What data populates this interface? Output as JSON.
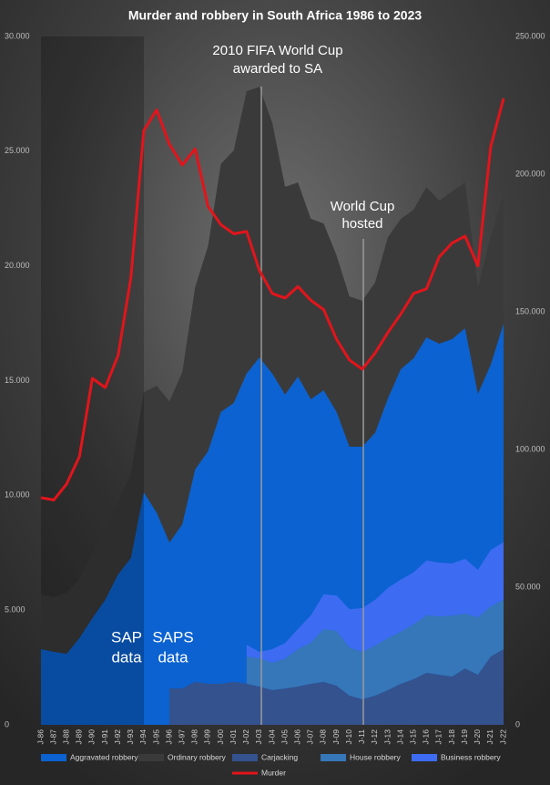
{
  "chart_data": {
    "type": "area",
    "title": "Murder and robbery in South Africa 1986 to 2023",
    "categories": [
      "J-86",
      "J-87",
      "J-88",
      "J-89",
      "J-90",
      "J-91",
      "J-92",
      "J-93",
      "J-94",
      "J-95",
      "J-96",
      "J-97",
      "J-98",
      "J-99",
      "J-00",
      "J-01",
      "J-02",
      "J-03",
      "J-04",
      "J-05",
      "J-06",
      "J-07",
      "J-08",
      "J-09",
      "J-10",
      "J-11",
      "J-12",
      "J-13",
      "J-14",
      "J-15",
      "J-16",
      "J-17",
      "J-18",
      "J-19",
      "J-20",
      "J-21",
      "J-22"
    ],
    "ylim": [
      0,
      30000
    ],
    "yticks": [
      0,
      {
        "value": 5000,
        "label": "5.000"
      },
      {
        "value": 10000,
        "label": "10.000"
      },
      {
        "value": 15000,
        "label": "15.000"
      },
      {
        "value": 20000,
        "label": "20.000"
      },
      {
        "value": 25000,
        "label": "25.000"
      },
      {
        "value": 30000,
        "label": "30.000"
      }
    ],
    "y2lim": [
      0,
      250000
    ],
    "y2ticks": [
      0,
      {
        "value": 50000,
        "label": "50.000"
      },
      {
        "value": 100000,
        "label": "100.000"
      },
      {
        "value": 150000,
        "label": "150.000"
      },
      {
        "value": 200000,
        "label": "200.000"
      },
      {
        "value": 250000,
        "label": "250.000"
      }
    ],
    "series": [
      {
        "name": "Aggravated robbery",
        "color": "#0b62d0",
        "axis": "y2",
        "values": [
          27500,
          26500,
          25800,
          31500,
          38700,
          45400,
          54600,
          60600,
          84400,
          77100,
          66200,
          72800,
          92700,
          99300,
          113600,
          116900,
          127500,
          133400,
          127500,
          119900,
          126500,
          118200,
          121500,
          113600,
          101000,
          101000,
          106000,
          118500,
          129100,
          133100,
          140700,
          138400,
          140100,
          144000,
          120200,
          130800,
          145700
        ]
      },
      {
        "name": "Ordinary robbery",
        "color": "#3a3a3a",
        "axis": "y2",
        "values": [
          19900,
          19900,
          22200,
          21500,
          24200,
          25800,
          26500,
          30500,
          36400,
          46000,
          51300,
          55300,
          66200,
          74500,
          90100,
          91700,
          102600,
          98300,
          91100,
          75500,
          70500,
          65600,
          60600,
          56900,
          54600,
          53000,
          54600,
          58600,
          54600,
          54000,
          54600,
          52000,
          53600,
          53000,
          38700,
          46400,
          46400
        ]
      },
      {
        "name": "Carjacking",
        "color": "#34528e",
        "axis": "y2",
        "values": [
          null,
          null,
          null,
          null,
          null,
          null,
          null,
          null,
          null,
          null,
          13200,
          13200,
          15600,
          14900,
          14900,
          15600,
          14900,
          13900,
          12600,
          13200,
          13900,
          14900,
          15600,
          14200,
          10600,
          9300,
          10600,
          12600,
          14900,
          16600,
          18900,
          18200,
          17500,
          20500,
          18200,
          24800,
          27500
        ]
      },
      {
        "name": "House robbery",
        "color": "#3677b9",
        "axis": "y2",
        "values": [
          null,
          null,
          null,
          null,
          null,
          null,
          null,
          null,
          null,
          null,
          null,
          null,
          null,
          null,
          null,
          null,
          9900,
          10300,
          9900,
          10900,
          13600,
          14900,
          19200,
          19900,
          17500,
          17200,
          18200,
          18900,
          18900,
          19900,
          20900,
          21200,
          22200,
          19900,
          20900,
          18200,
          17900
        ]
      },
      {
        "name": "Business robbery",
        "color": "#3d6cf2",
        "axis": "y2",
        "values": [
          null,
          null,
          null,
          null,
          null,
          null,
          null,
          null,
          null,
          null,
          null,
          null,
          null,
          null,
          null,
          null,
          4300,
          2300,
          5000,
          5600,
          7300,
          9900,
          12600,
          12900,
          13900,
          15900,
          16600,
          18200,
          18900,
          18900,
          19900,
          19500,
          18900,
          19900,
          17200,
          20500,
          20900
        ]
      },
      {
        "name": "Murder",
        "color": "#e3141b",
        "axis": "y",
        "type": "line",
        "values": [
          9900,
          9800,
          10500,
          11700,
          15100,
          14700,
          16100,
          19500,
          25900,
          26800,
          25300,
          24400,
          25100,
          22600,
          21800,
          21400,
          21500,
          19800,
          18800,
          18600,
          19100,
          18500,
          18100,
          16800,
          15900,
          15500,
          16200,
          17100,
          17900,
          18800,
          19000,
          20400,
          21000,
          21300,
          20000,
          25200,
          27300
        ]
      }
    ],
    "annotations": [
      {
        "text": [
          "2010 FIFA World Cup",
          "awarded to SA"
        ]
      },
      {
        "text": [
          "World Cup",
          "hosted"
        ]
      },
      {
        "text": [
          "SAP",
          "data"
        ]
      },
      {
        "text": [
          "SAPS",
          "data"
        ]
      }
    ]
  }
}
